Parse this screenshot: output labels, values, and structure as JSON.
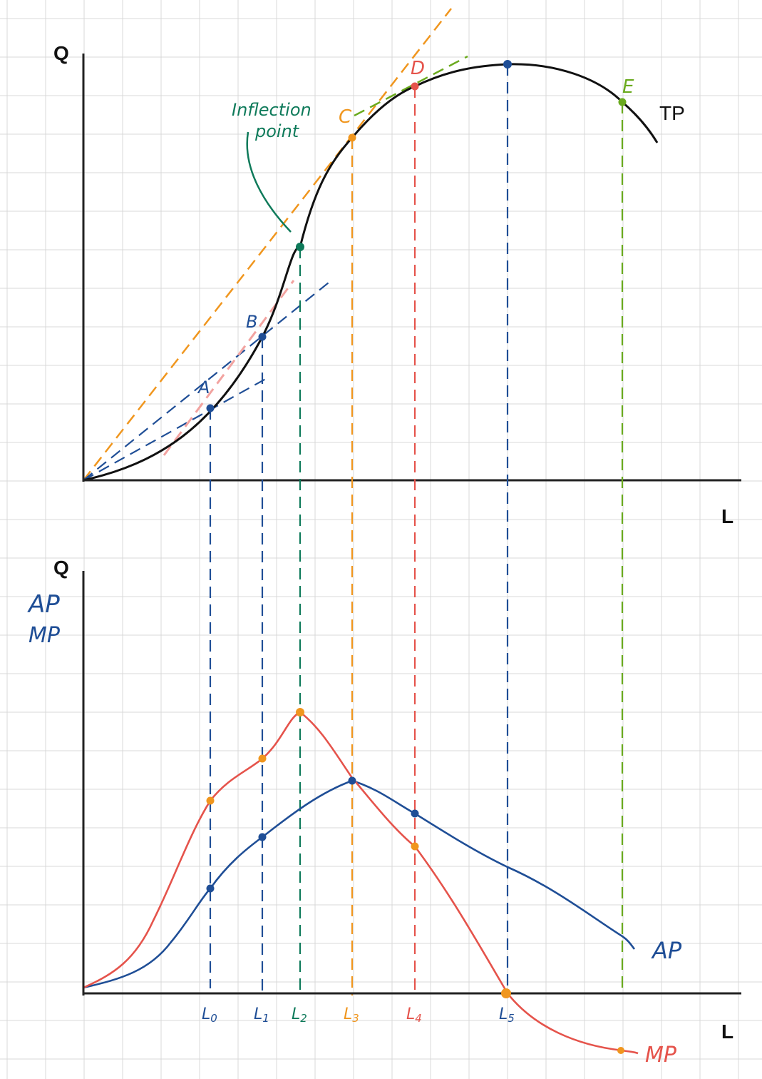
{
  "labels": {
    "top_y_axis": "Q",
    "top_x_axis": "L",
    "bottom_y_axis": "Q",
    "bottom_x_axis": "L",
    "bottom_y_sub_ap": "AP",
    "bottom_y_sub_mp": "MP",
    "tp_curve": "TP",
    "ap_curve": "AP",
    "mp_curve": "MP",
    "annotation_line1": "Inflection",
    "annotation_line2": "point"
  },
  "points": {
    "A": "A",
    "B": "B",
    "C": "C",
    "D": "D",
    "E": "E"
  },
  "x_ticks": [
    "L",
    "L",
    "L",
    "L",
    "L",
    "L"
  ],
  "x_tick_subs": [
    "0",
    "1",
    "2",
    "3",
    "4",
    "5"
  ],
  "colors": {
    "grid": "#d9d9d9",
    "axis": "#222222",
    "tp": "#111111",
    "ap": "#1f4e96",
    "mp": "#e5534b",
    "orange": "#f0961e",
    "green": "#0e7a5a",
    "lime": "#6aaa1e",
    "pink": "#f2a3a0"
  }
}
